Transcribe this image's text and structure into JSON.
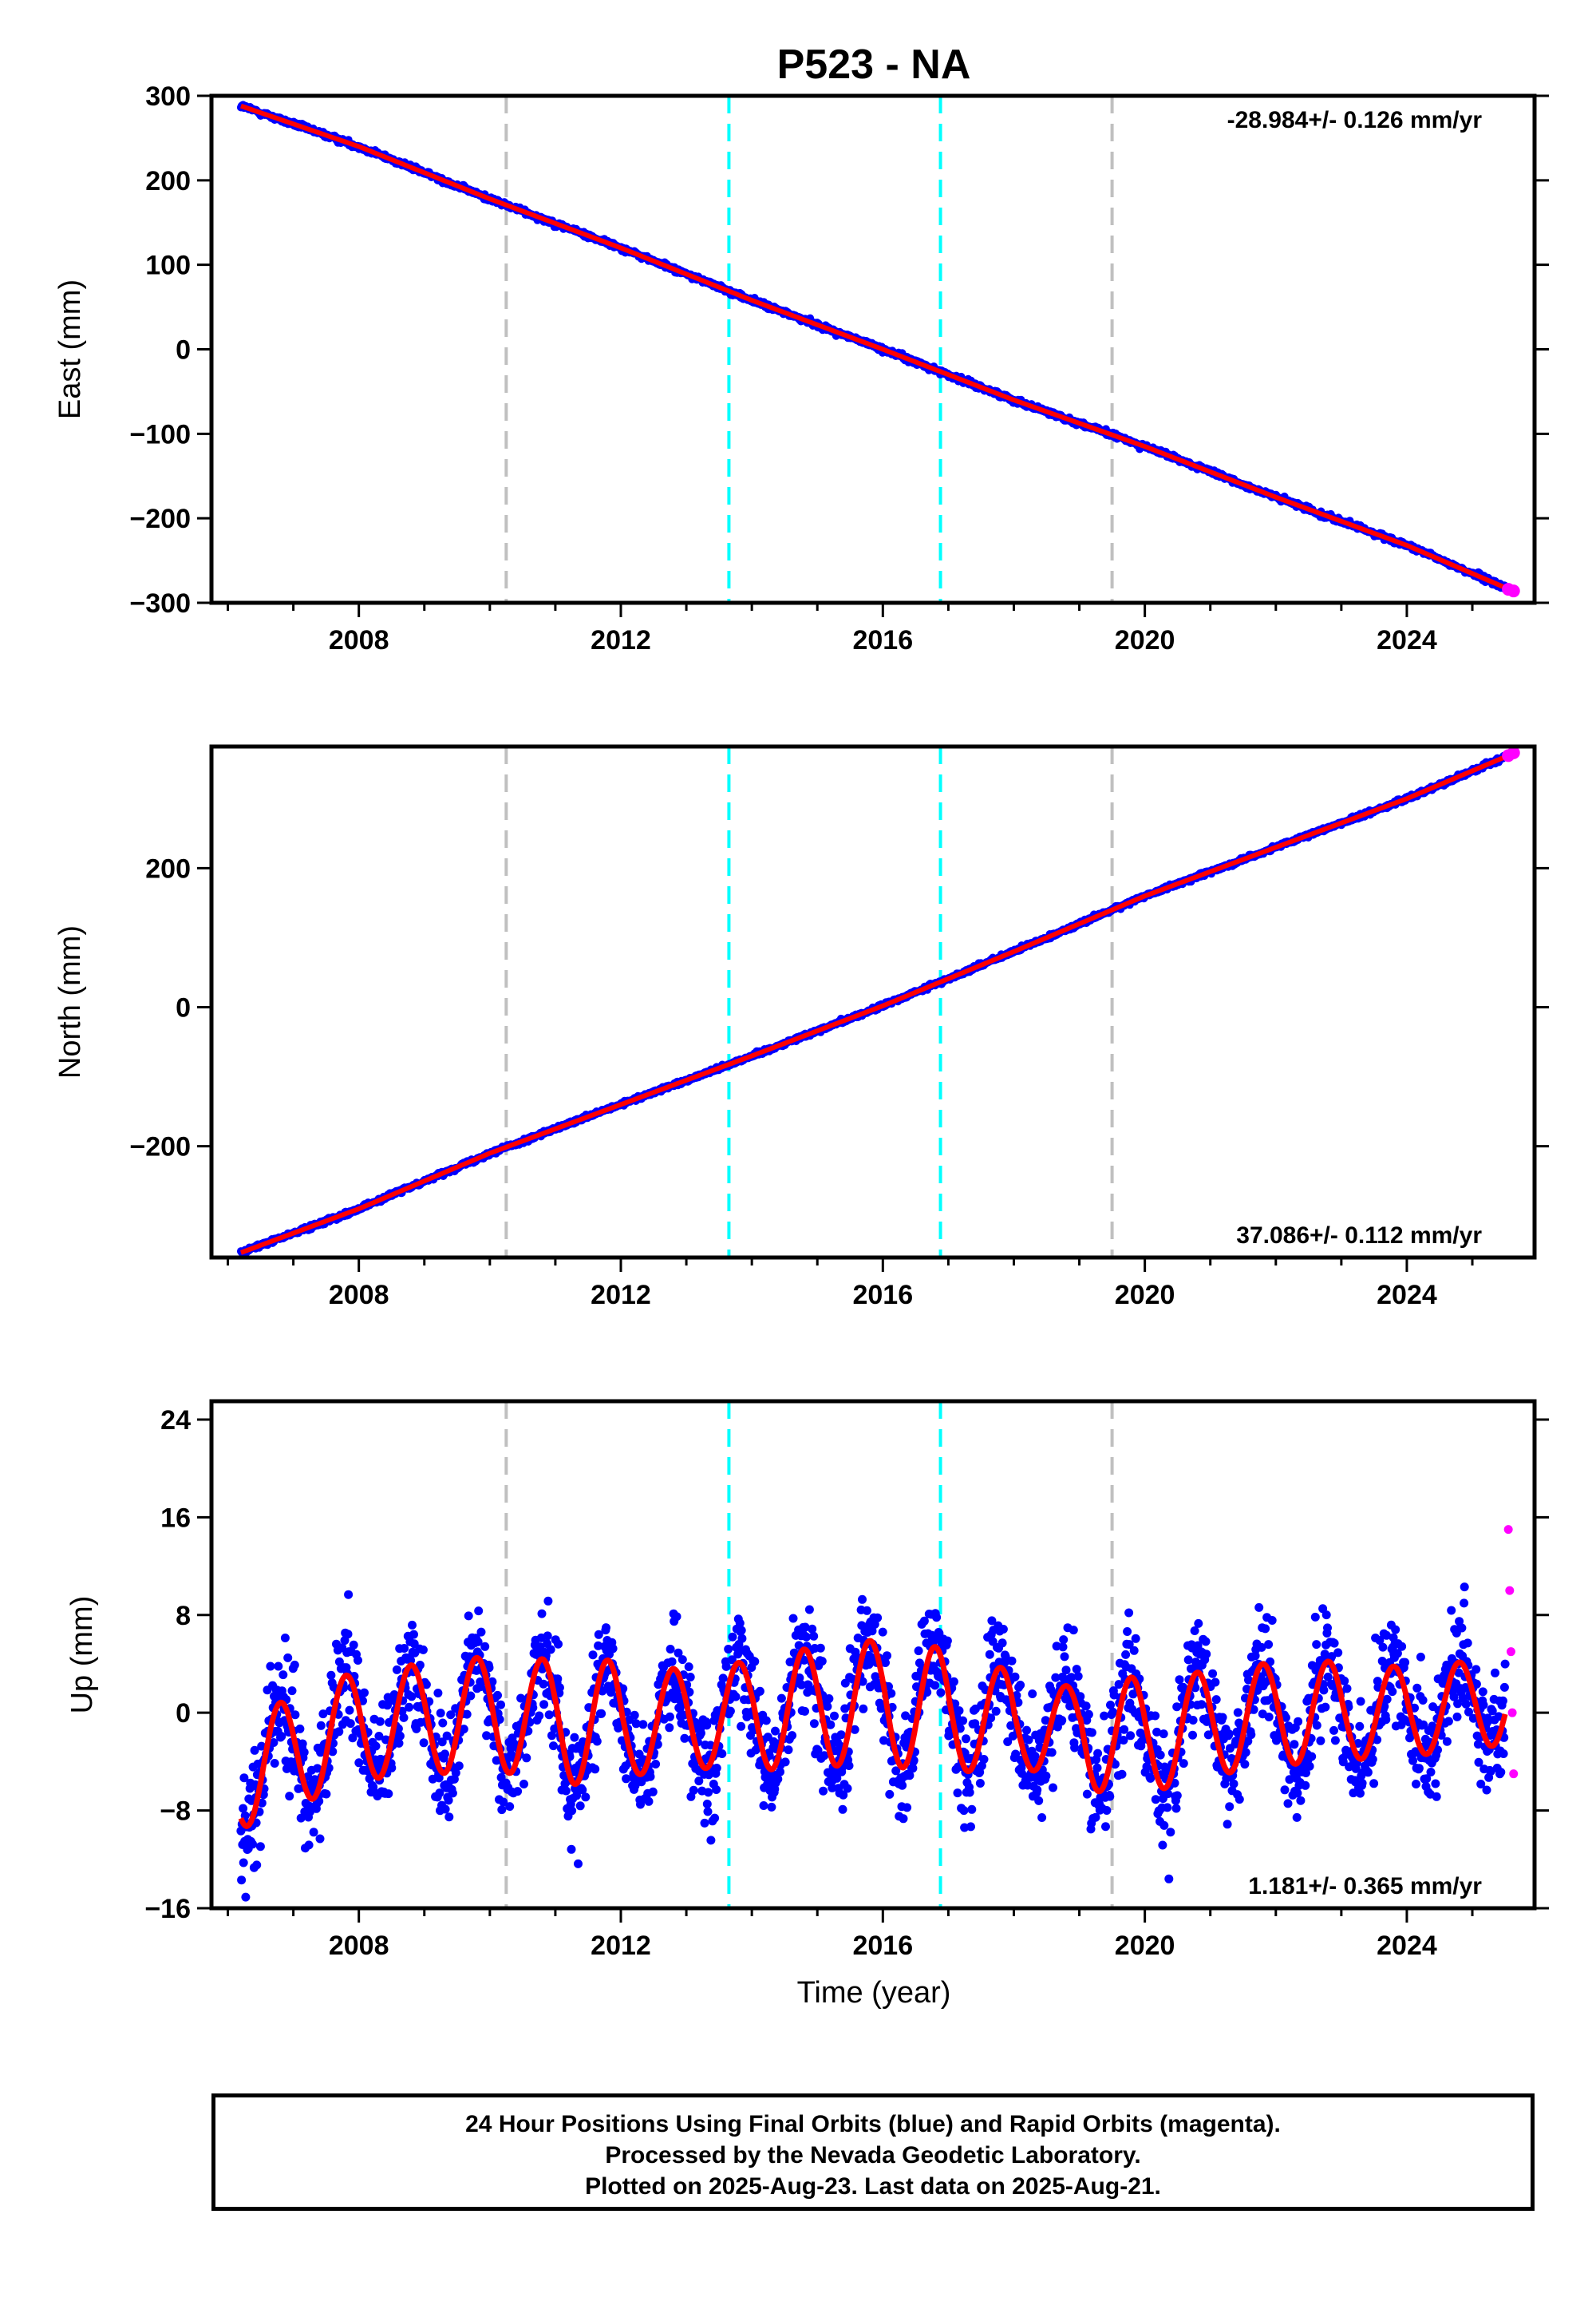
{
  "title": "P523 - NA",
  "xlabel": "Time (year)",
  "caption": [
    "24 Hour Positions Using Final Orbits (blue) and Rapid Orbits (magenta).",
    "Processed by the Nevada Geodetic Laboratory.",
    "Plotted on 2025-Aug-23. Last data on 2025-Aug-21."
  ],
  "colors": {
    "final": "#0000ff",
    "rapid": "#ff00ff",
    "model": "#ff0000",
    "equipment_change": "#c0c0c0",
    "earthquake": "#00ffff"
  },
  "chart_data": [
    {
      "type": "scatter",
      "panel": "east",
      "ylabel": "East (mm)",
      "ylim": [
        -300,
        300
      ],
      "yticks": [
        300,
        200,
        100,
        0,
        -100,
        -200,
        -300
      ],
      "xlim": [
        2005.75,
        2025.95
      ],
      "xticks": [
        2008,
        2012,
        2016,
        2020,
        2024
      ],
      "rate_label": "-28.984+/- 0.126 mm/yr",
      "rate_position": "top-right",
      "series": [
        {
          "role": "final",
          "x": [
            2006.2,
            2008,
            2010,
            2012,
            2014,
            2016,
            2018,
            2020,
            2022,
            2024,
            2025.5
          ],
          "values": [
            288,
            240,
            178,
            120,
            58,
            0,
            -60,
            -115,
            -175,
            -232,
            -282
          ]
        },
        {
          "role": "rapid",
          "x": [
            2025.55,
            2025.63
          ],
          "values": [
            -284,
            -286
          ]
        }
      ],
      "offsets_gray": [
        2010.25,
        2019.5
      ],
      "offsets_cyan": [
        2013.65,
        2016.88
      ]
    },
    {
      "type": "scatter",
      "panel": "north",
      "ylabel": "North (mm)",
      "ylim": [
        -360,
        375
      ],
      "yticks": [
        200,
        0,
        -200
      ],
      "xlim": [
        2005.75,
        2025.95
      ],
      "xticks": [
        2008,
        2012,
        2016,
        2020,
        2024
      ],
      "rate_label": "37.086+/- 0.112 mm/yr",
      "rate_position": "bottom-right",
      "series": [
        {
          "role": "final",
          "x": [
            2006.2,
            2008,
            2010,
            2012,
            2014,
            2016,
            2018,
            2020,
            2022,
            2024,
            2025.5
          ],
          "values": [
            -353,
            -290,
            -210,
            -140,
            -70,
            2,
            80,
            160,
            230,
            300,
            360
          ]
        },
        {
          "role": "rapid",
          "x": [
            2025.55,
            2025.63
          ],
          "values": [
            362,
            366
          ]
        }
      ],
      "offsets_gray": [
        2010.25,
        2019.5
      ],
      "offsets_cyan": [
        2013.65,
        2016.88
      ]
    },
    {
      "type": "scatter",
      "panel": "up",
      "ylabel": "Up (mm)",
      "ylim": [
        -16,
        25.5
      ],
      "yticks": [
        24,
        16,
        8,
        0,
        -8,
        -16
      ],
      "xlim": [
        2005.75,
        2025.95
      ],
      "xticks": [
        2008,
        2012,
        2016,
        2020,
        2024
      ],
      "rate_label": "1.181+/- 0.365 mm/yr",
      "rate_position": "bottom-right",
      "seasonal_amplitude_mm": [
        4.5,
        4.5,
        4.5,
        4.6,
        4.8,
        5.2,
        4.2,
        4.2,
        4.8,
        5.0,
        5.2,
        4.5,
        3.6,
        4.8,
        4.5,
        4.2,
        4.2,
        3.8,
        3.6,
        3.6
      ],
      "series": [
        {
          "role": "final",
          "x": [
            2006.2,
            2008,
            2010,
            2012,
            2014,
            2016,
            2018,
            2020,
            2022,
            2024,
            2025.5
          ],
          "values": [
            -5,
            -1,
            0,
            -1,
            0,
            1,
            -1,
            -2,
            0,
            0,
            1
          ]
        },
        {
          "role": "rapid",
          "x": [
            2025.55,
            2025.57,
            2025.59,
            2025.61,
            2025.63
          ],
          "values": [
            15,
            10,
            5,
            0,
            -5
          ]
        }
      ],
      "offsets_gray": [
        2010.25,
        2019.5
      ],
      "offsets_cyan": [
        2013.65,
        2016.88
      ]
    }
  ]
}
